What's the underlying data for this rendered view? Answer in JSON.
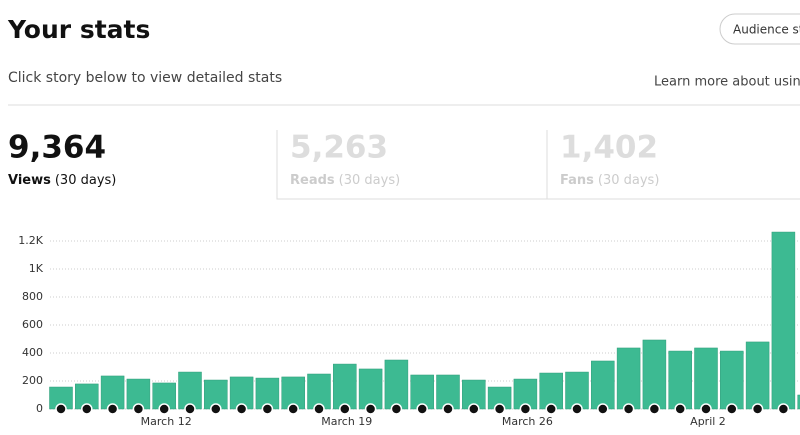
{
  "header": {
    "title": "Your stats",
    "button": "Audience stat",
    "subtitle": "Click story below to view detailed stats",
    "link": "Learn more about using s"
  },
  "stats": [
    {
      "value": "9,364",
      "label": "Views",
      "period": "(30 days)"
    },
    {
      "value": "5,263",
      "label": "Reads",
      "period": "(30 days)"
    },
    {
      "value": "1,402",
      "label": "Fans",
      "period": "(30 days)"
    }
  ],
  "chart_data": {
    "type": "bar",
    "categories": [
      null,
      null,
      null,
      null,
      "March 12",
      null,
      null,
      null,
      null,
      null,
      null,
      "March 19",
      null,
      null,
      null,
      null,
      null,
      null,
      "March 26",
      null,
      null,
      null,
      null,
      null,
      null,
      "April 2",
      null,
      null,
      null,
      null
    ],
    "values": [
      157,
      179,
      236,
      214,
      186,
      264,
      207,
      229,
      221,
      229,
      250,
      321,
      286,
      350,
      243,
      243,
      207,
      157,
      214,
      257,
      264,
      343,
      436,
      493,
      414,
      436,
      414,
      479,
      1264,
      100
    ],
    "color": "#3dba92",
    "ylim": [
      0,
      1300
    ],
    "yticks": [
      0,
      200,
      400,
      600,
      800,
      {
        "value": 1000,
        "label": "1K"
      },
      {
        "value": 1200,
        "label": "1.2K"
      }
    ],
    "grid": true
  }
}
